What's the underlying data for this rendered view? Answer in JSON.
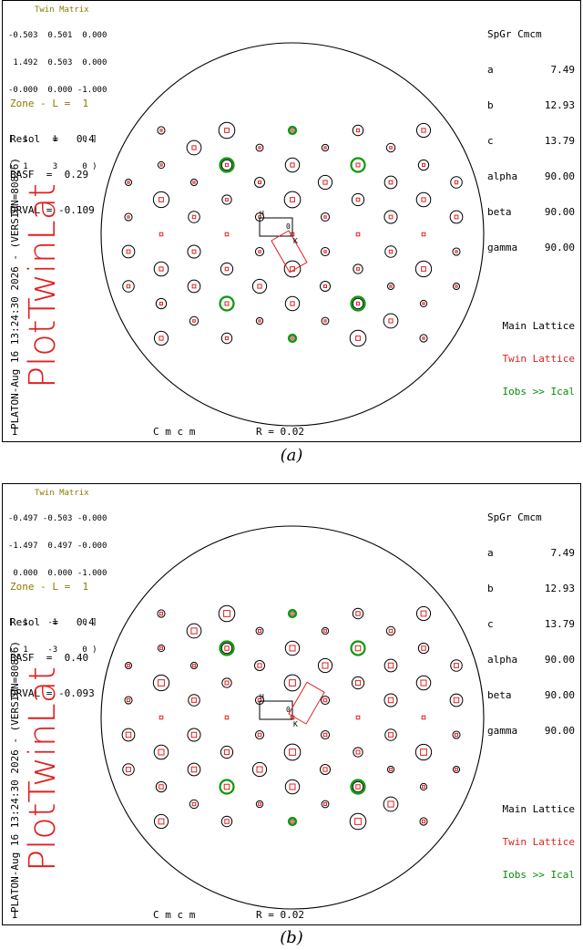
{
  "panels": [
    {
      "matrix_title": "Twin Matrix",
      "matrix_rows": [
        "-0.503  0.501  0.000",
        " 1.492  0.503  0.000",
        "-0.000  0.000 -1.000"
      ],
      "hkl_rows": [
        "[  1     1     0 ]",
        "(  1     3     0 )"
      ],
      "zone": "Zone - L =  1",
      "resol": "Resol  =   0.4",
      "basf": "BASF  =  0.29",
      "drval": "DRVAL = -0.109",
      "spgr": [
        "SpGr Cmcm",
        "a",
        "b",
        "c",
        "alpha",
        "beta",
        "gamma"
      ],
      "spgr_values": [
        "",
        "7.49",
        "12.93",
        "13.79",
        "90.00",
        "90.00",
        "90.00"
      ],
      "program_title": "PlotTwinLat",
      "version_line": "PLATON-Aug 16 13:24:30 2026 - (VERSION=80826)",
      "legend_main": "Main Lattice",
      "legend_twin": "Twin Lattice",
      "legend_obs": "Iobs >> Ical",
      "corner_label": "I",
      "space_group_label": "C m c m",
      "r_label": "R = 0.02",
      "cell_labels": {
        "h": "H",
        "o": "0",
        "k": "K"
      },
      "caption": "(a)",
      "twin_rotation_deg": -30,
      "twin_size_scale": 0.7,
      "twin_cell_rotation_deg": 60
    },
    {
      "matrix_title": "Twin Matrix",
      "matrix_rows": [
        "-0.497 -0.503 -0.000",
        "-1.497  0.497 -0.000",
        " 0.000  0.000 -1.000"
      ],
      "hkl_rows": [
        "[  1    -1     0 ]",
        "(  1    -3     0 )"
      ],
      "zone": "Zone - L =  1",
      "resol": "Resol  =   0.4",
      "basf": "BASF  =  0.40",
      "drval": "DRVAL = -0.093",
      "spgr": [
        "SpGr Cmcm",
        "a",
        "b",
        "c",
        "alpha",
        "beta",
        "gamma"
      ],
      "spgr_values": [
        "",
        "7.49",
        "12.93",
        "13.79",
        "90.00",
        "90.00",
        "90.00"
      ],
      "program_title": "PlotTwinLat",
      "version_line": "PLATON-Aug 16 13:24:30 2026 - (VERSION=80826)",
      "legend_main": "Main Lattice",
      "legend_twin": "Twin Lattice",
      "legend_obs": "Iobs >> Ical",
      "corner_label": "I",
      "space_group_label": "C m c m",
      "r_label": "R = 0.02",
      "cell_labels": {
        "h": "H",
        "o": "0",
        "k": "K"
      },
      "caption": "(b)",
      "twin_rotation_deg": 30,
      "twin_size_scale": 1.0,
      "twin_cell_rotation_deg": -60
    }
  ]
}
